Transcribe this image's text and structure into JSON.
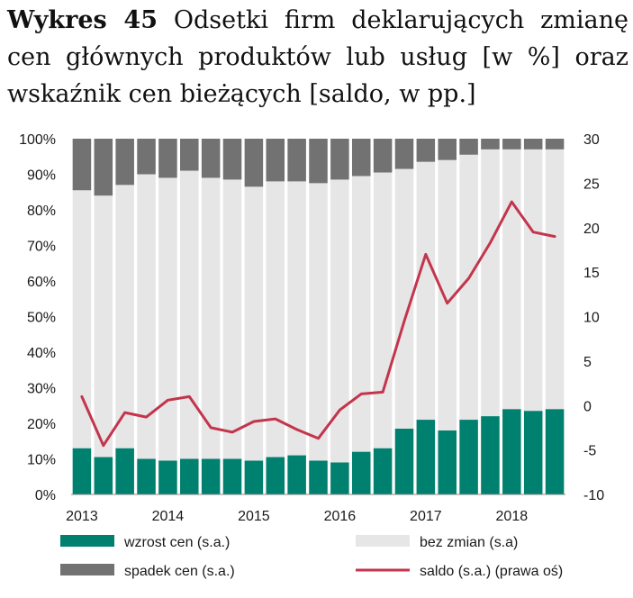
{
  "title": {
    "bold": "Wykres 45",
    "text": "Odsetki firm deklarujących zmianę cen głównych produktów lub usług [w %] oraz wskaźnik cen bieżących [saldo, w pp.]"
  },
  "colors": {
    "increase": "#00806e",
    "no_change": "#e6e6e6",
    "decrease": "#727272",
    "balance": "#c3354d"
  },
  "chart_data": {
    "type": "bar",
    "stacked": true,
    "x_labels": [
      "2013",
      "2014",
      "2015",
      "2016",
      "2017",
      "2018"
    ],
    "y_left": {
      "ticks": [
        "0%",
        "10%",
        "20%",
        "30%",
        "40%",
        "50%",
        "60%",
        "70%",
        "80%",
        "90%",
        "100%"
      ],
      "range": [
        0,
        100
      ]
    },
    "y_right": {
      "ticks": [
        "-10",
        "-5",
        "0",
        "5",
        "10",
        "15",
        "20",
        "25",
        "30"
      ],
      "range": [
        -10,
        30
      ]
    },
    "periods": [
      "2013Q1",
      "2013Q2",
      "2013Q3",
      "2013Q4",
      "2014Q1",
      "2014Q2",
      "2014Q3",
      "2014Q4",
      "2015Q1",
      "2015Q2",
      "2015Q3",
      "2015Q4",
      "2016Q1",
      "2016Q2",
      "2016Q3",
      "2016Q4",
      "2017Q1",
      "2017Q2",
      "2017Q3",
      "2017Q4",
      "2018Q1",
      "2018Q2",
      "2018Q3"
    ],
    "series": [
      {
        "name": "wzrost cen (s.a.)",
        "type": "bar",
        "axis": "left",
        "values": [
          13.0,
          10.5,
          13.0,
          10.0,
          9.5,
          10.0,
          10.0,
          10.0,
          9.5,
          10.5,
          11.0,
          9.5,
          9.0,
          12.0,
          13.0,
          18.5,
          21.0,
          18.0,
          21.0,
          22.0,
          24.0,
          23.5,
          24.0
        ]
      },
      {
        "name": "bez zmian (s.a)",
        "type": "bar",
        "axis": "left",
        "values": [
          72.5,
          73.5,
          74.0,
          80.0,
          79.5,
          81.0,
          79.0,
          78.5,
          77.0,
          77.5,
          77.0,
          78.0,
          79.5,
          77.5,
          77.5,
          73.0,
          72.5,
          76.0,
          74.5,
          75.0,
          73.0,
          73.5,
          73.0
        ]
      },
      {
        "name": "spadek cen (s.a.)",
        "type": "bar",
        "axis": "left",
        "values": [
          14.5,
          16.0,
          13.0,
          10.0,
          11.0,
          9.0,
          11.0,
          11.5,
          13.5,
          12.0,
          12.0,
          12.5,
          11.5,
          10.5,
          9.5,
          8.5,
          6.5,
          6.0,
          4.5,
          3.0,
          3.0,
          3.0,
          3.0
        ]
      },
      {
        "name": "saldo (s.a.) (prawa oś)",
        "type": "line",
        "axis": "right",
        "values": [
          1.0,
          -4.5,
          -0.8,
          -1.3,
          0.6,
          1.0,
          -2.5,
          -3.0,
          -1.8,
          -1.5,
          -2.7,
          -3.7,
          -0.5,
          1.3,
          1.5,
          9.5,
          17.0,
          11.5,
          14.3,
          18.3,
          22.9,
          19.5,
          19.0
        ]
      }
    ],
    "legend": {
      "placement": "bottom",
      "items": [
        "wzrost cen (s.a.)",
        "bez zmian (s.a)",
        "spadek cen (s.a.)",
        "saldo (s.a.) (prawa oś)"
      ]
    }
  }
}
